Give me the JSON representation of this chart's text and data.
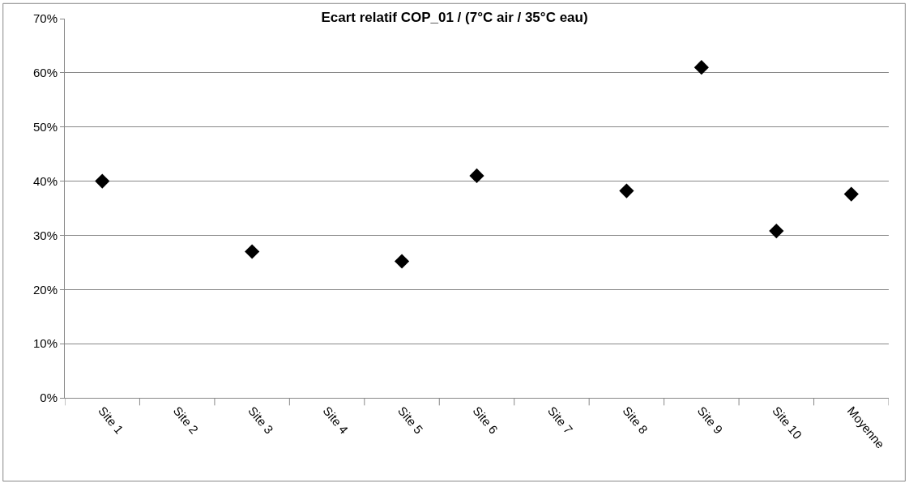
{
  "chart_data": {
    "type": "scatter",
    "title": "Ecart relatif COP_01 / (7°C air / 35°C eau)",
    "categories": [
      "Site 1",
      "Site 2",
      "Site 3",
      "Site 4",
      "Site 5",
      "Site 6",
      "Site 7",
      "Site 8",
      "Site 9",
      "Site 10",
      "Moyenne"
    ],
    "series": [
      {
        "color": "#000000",
        "values": [
          40,
          null,
          27,
          null,
          25.2,
          41,
          null,
          38.2,
          61,
          30.8,
          37.6
        ]
      }
    ],
    "ylim": [
      0,
      70
    ],
    "yticks": [
      {
        "value": 0,
        "label": "0%"
      },
      {
        "value": 10,
        "label": "10%"
      },
      {
        "value": 20,
        "label": "20%"
      },
      {
        "value": 30,
        "label": "30%"
      },
      {
        "value": 40,
        "label": "40%"
      },
      {
        "value": 50,
        "label": "50%"
      },
      {
        "value": 60,
        "label": "60%"
      },
      {
        "value": 70,
        "label": "70%"
      }
    ],
    "grid": "y",
    "legend": false,
    "marker": "diamond"
  }
}
